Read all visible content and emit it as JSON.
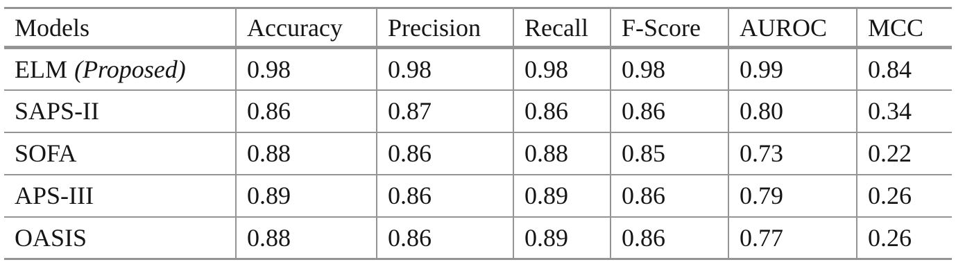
{
  "table": {
    "columns": [
      "Models",
      "Accuracy",
      "Precision",
      "Recall",
      "F-Score",
      "AUROC",
      "MCC"
    ],
    "rows": [
      {
        "model": "ELM",
        "model_note": "(Proposed)",
        "values": [
          "0.98",
          "0.98",
          "0.98",
          "0.98",
          "0.99",
          "0.84"
        ]
      },
      {
        "model": "SAPS-II",
        "model_note": "",
        "values": [
          "0.86",
          "0.87",
          "0.86",
          "0.86",
          "0.80",
          "0.34"
        ]
      },
      {
        "model": "SOFA",
        "model_note": "",
        "values": [
          "0.88",
          "0.86",
          "0.88",
          "0.85",
          "0.73",
          "0.22"
        ]
      },
      {
        "model": "APS-III",
        "model_note": "",
        "values": [
          "0.89",
          "0.86",
          "0.89",
          "0.86",
          "0.79",
          "0.26"
        ]
      },
      {
        "model": "OASIS",
        "model_note": "",
        "values": [
          "0.88",
          "0.86",
          "0.89",
          "0.86",
          "0.77",
          "0.26"
        ]
      }
    ],
    "colors": {
      "border": "#949494",
      "text": "#151515",
      "background": "#ffffff"
    }
  },
  "chart_data": {
    "type": "table",
    "title": "",
    "columns": [
      "Models",
      "Accuracy",
      "Precision",
      "Recall",
      "F-Score",
      "AUROC",
      "MCC"
    ],
    "rows": [
      [
        "ELM (Proposed)",
        0.98,
        0.98,
        0.98,
        0.98,
        0.99,
        0.84
      ],
      [
        "SAPS-II",
        0.86,
        0.87,
        0.86,
        0.86,
        0.8,
        0.34
      ],
      [
        "SOFA",
        0.88,
        0.86,
        0.88,
        0.85,
        0.73,
        0.22
      ],
      [
        "APS-III",
        0.89,
        0.86,
        0.89,
        0.86,
        0.79,
        0.26
      ],
      [
        "OASIS",
        0.88,
        0.86,
        0.89,
        0.86,
        0.77,
        0.26
      ]
    ]
  }
}
